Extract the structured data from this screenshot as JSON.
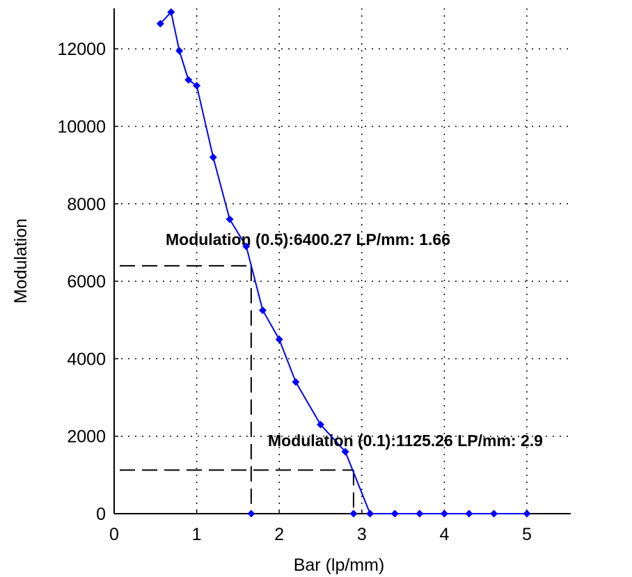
{
  "chart_data": {
    "type": "line",
    "xlabel": "Bar (lp/mm)",
    "ylabel": "Modulation",
    "xlim": [
      0,
      5.5
    ],
    "ylim": [
      0,
      13000
    ],
    "xticks": [
      "0",
      "1",
      "2",
      "3",
      "4",
      "5"
    ],
    "yticks": [
      "0",
      "2000",
      "4000",
      "6000",
      "8000",
      "10000",
      "12000"
    ],
    "grid": true,
    "line_color": "#0000ff",
    "marker": "diamond",
    "series": [
      {
        "x": [
          0.56,
          0.69,
          0.79,
          0.9,
          1.0,
          1.2,
          1.4,
          1.6,
          1.8,
          2.0,
          2.2,
          2.5,
          2.8,
          3.1,
          3.4,
          3.7,
          4.0,
          4.3,
          4.6,
          5.0
        ],
        "y": [
          12650,
          12950,
          11950,
          11200,
          11050,
          9200,
          7600,
          6900,
          5250,
          4500,
          3400,
          2300,
          1600,
          0,
          0,
          0,
          0,
          0,
          0,
          0
        ]
      }
    ],
    "extra_points": [
      {
        "x": 1.66,
        "y": 0
      },
      {
        "x": 2.9,
        "y": 0
      }
    ],
    "reference_lines": [
      {
        "x": 1.66,
        "y": 6400.27
      },
      {
        "x": 2.9,
        "y": 1125.26
      }
    ],
    "annotations": [
      {
        "text": "Modulation (0.5):6400.27  LP/mm: 1.66"
      },
      {
        "text": "Modulation (0.1):1125.26  LP/mm: 2.9"
      }
    ]
  }
}
